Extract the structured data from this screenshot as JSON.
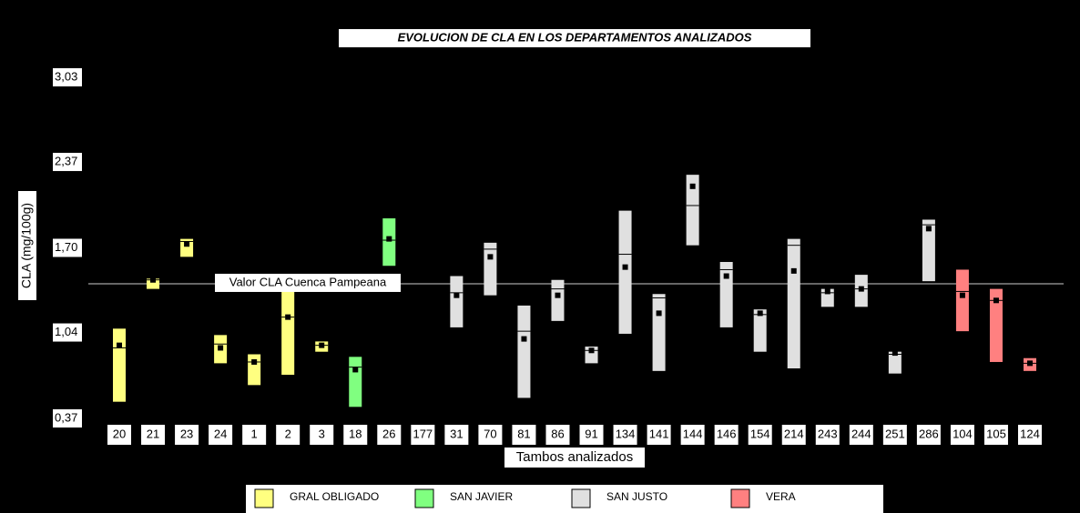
{
  "chart_data": {
    "type": "floating-box",
    "title": "EVOLUCION DE CLA EN LOS DEPARTAMENTOS ANALIZADOS",
    "y_label": "CLA (mg/100g)",
    "x_label": "Tambos analizados",
    "categories": [
      "20",
      "21",
      "23",
      "24",
      "1",
      "2",
      "3",
      "18",
      "26",
      "177",
      "31",
      "70",
      "81",
      "86",
      "91",
      "134",
      "141",
      "144",
      "146",
      "154",
      "214",
      "243",
      "244",
      "251",
      "286",
      "104",
      "105",
      "124"
    ],
    "ylim": [
      0.37,
      3.03
    ],
    "yticks": [
      {
        "value": 0.37,
        "label": "0,37"
      },
      {
        "value": 1.04,
        "label": "1,04"
      },
      {
        "value": 1.7,
        "label": "1,70"
      },
      {
        "value": 2.37,
        "label": "2,37"
      },
      {
        "value": 3.03,
        "label": "3,03"
      }
    ],
    "grid": false,
    "reference_line": {
      "value": 1.42,
      "label": "Valor CLA Cuenca Pampeana"
    },
    "series": [
      {
        "name": "GRAL OBLIGADO",
        "color": "#ffff80",
        "low": [
          0.5,
          1.38,
          1.63,
          0.8,
          0.63,
          0.71,
          0.89,
          null,
          null,
          null,
          null,
          null,
          null,
          null,
          null,
          null,
          null,
          null,
          null,
          null,
          null,
          null,
          null,
          null,
          null,
          null,
          null,
          null
        ],
        "high": [
          1.07,
          1.46,
          1.77,
          1.02,
          0.87,
          1.39,
          0.97,
          null,
          null,
          null,
          null,
          null,
          null,
          null,
          null,
          null,
          null,
          null,
          null,
          null,
          null,
          null,
          null,
          null,
          null,
          null,
          null,
          null
        ],
        "median": [
          0.92,
          1.45,
          1.75,
          0.95,
          0.81,
          1.16,
          0.94,
          null,
          null,
          null,
          null,
          null,
          null,
          null,
          null,
          null,
          null,
          null,
          null,
          null,
          null,
          null,
          null,
          null,
          null,
          null,
          null,
          null
        ],
        "mean": [
          0.94,
          1.45,
          1.73,
          0.92,
          0.81,
          1.16,
          0.94,
          null,
          null,
          null,
          null,
          null,
          null,
          null,
          null,
          null,
          null,
          null,
          null,
          null,
          null,
          null,
          null,
          null,
          null,
          null,
          null,
          null
        ]
      },
      {
        "name": "SAN JAVIER",
        "color": "#80ff80",
        "low": [
          null,
          null,
          null,
          null,
          null,
          null,
          null,
          0.46,
          1.56,
          null,
          null,
          null,
          null,
          null,
          null,
          null,
          null,
          null,
          null,
          null,
          null,
          null,
          null,
          null,
          null,
          null,
          null,
          null
        ],
        "high": [
          null,
          null,
          null,
          null,
          null,
          null,
          null,
          0.85,
          1.93,
          null,
          null,
          null,
          null,
          null,
          null,
          null,
          null,
          null,
          null,
          null,
          null,
          null,
          null,
          null,
          null,
          null,
          null,
          null
        ],
        "median": [
          null,
          null,
          null,
          null,
          null,
          null,
          null,
          0.77,
          1.76,
          null,
          null,
          null,
          null,
          null,
          null,
          null,
          null,
          null,
          null,
          null,
          null,
          null,
          null,
          null,
          null,
          null,
          null,
          null
        ],
        "mean": [
          null,
          null,
          null,
          null,
          null,
          null,
          null,
          0.75,
          1.77,
          null,
          null,
          null,
          null,
          null,
          null,
          null,
          null,
          null,
          null,
          null,
          null,
          null,
          null,
          null,
          null,
          null,
          null,
          null
        ]
      },
      {
        "name": "SAN JUSTO",
        "color": "#e0e0e0",
        "low": [
          null,
          null,
          null,
          null,
          null,
          null,
          null,
          null,
          null,
          null,
          1.08,
          1.33,
          0.53,
          1.13,
          0.8,
          1.03,
          0.74,
          1.72,
          1.08,
          0.89,
          0.76,
          1.24,
          1.24,
          0.72,
          1.44,
          null,
          null,
          null
        ],
        "high": [
          null,
          null,
          null,
          null,
          null,
          null,
          null,
          null,
          null,
          null,
          1.48,
          1.74,
          1.25,
          1.45,
          0.93,
          1.99,
          1.34,
          2.27,
          1.59,
          1.22,
          1.77,
          1.38,
          1.49,
          0.89,
          1.92,
          null,
          null,
          null
        ],
        "median": [
          null,
          null,
          null,
          null,
          null,
          null,
          null,
          null,
          null,
          null,
          1.35,
          1.69,
          1.05,
          1.38,
          0.9,
          1.65,
          1.31,
          2.03,
          1.53,
          1.18,
          1.72,
          1.35,
          1.38,
          0.87,
          1.88,
          null,
          null,
          null
        ],
        "mean": [
          null,
          null,
          null,
          null,
          null,
          null,
          null,
          null,
          null,
          null,
          1.33,
          1.63,
          0.99,
          1.33,
          0.9,
          1.55,
          1.19,
          2.18,
          1.48,
          1.19,
          1.52,
          1.36,
          1.38,
          0.88,
          1.85,
          null,
          null,
          null
        ]
      },
      {
        "name": "VERA",
        "color": "#ff8080",
        "low": [
          null,
          null,
          null,
          null,
          null,
          null,
          null,
          null,
          null,
          null,
          null,
          null,
          null,
          null,
          null,
          null,
          null,
          null,
          null,
          null,
          null,
          null,
          null,
          null,
          null,
          1.05,
          0.81,
          0.74
        ],
        "high": [
          null,
          null,
          null,
          null,
          null,
          null,
          null,
          null,
          null,
          null,
          null,
          null,
          null,
          null,
          null,
          null,
          null,
          null,
          null,
          null,
          null,
          null,
          null,
          null,
          null,
          1.53,
          1.38,
          0.84
        ],
        "median": [
          null,
          null,
          null,
          null,
          null,
          null,
          null,
          null,
          null,
          null,
          null,
          null,
          null,
          null,
          null,
          null,
          null,
          null,
          null,
          null,
          null,
          null,
          null,
          null,
          null,
          1.36,
          1.29,
          0.8
        ],
        "mean": [
          null,
          null,
          null,
          null,
          null,
          null,
          null,
          null,
          null,
          null,
          null,
          null,
          null,
          null,
          null,
          null,
          null,
          null,
          null,
          null,
          null,
          null,
          null,
          null,
          null,
          1.33,
          1.29,
          0.8
        ]
      }
    ]
  }
}
